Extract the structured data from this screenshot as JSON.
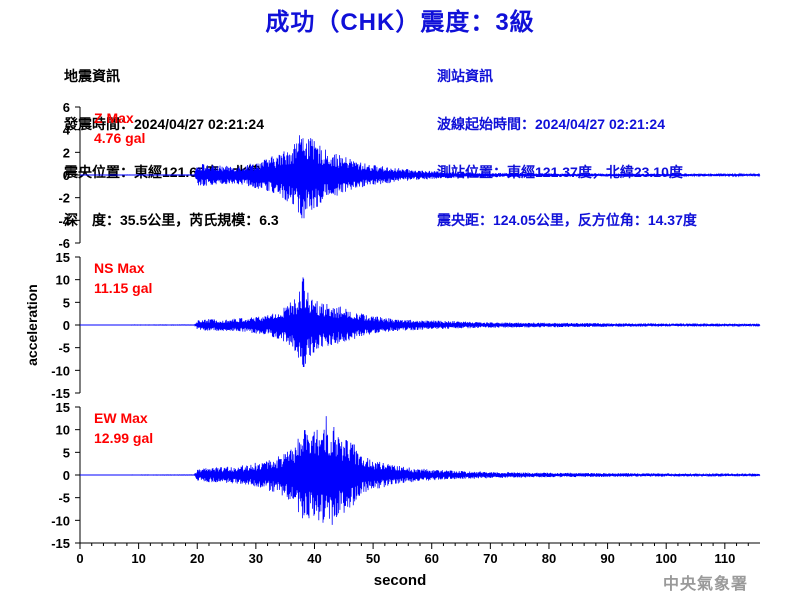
{
  "title": "成功（CHK）震度：3級",
  "quake_info": {
    "heading": "地震資訊",
    "origin_time": "發震時間：2024/04/27 02:21:24",
    "epicenter": "震央位置：東經121.67度，北緯24.18度",
    "depth_magnitude": "深　度：35.5公里，芮氏規模：6.3"
  },
  "station_info": {
    "heading": "測站資訊",
    "wave_start": "波線起始時間：2024/04/27 02:21:24",
    "location": "測站位置：東經121.37度，北緯23.10度",
    "distance": "震央距：124.05公里，反方位角：14.37度"
  },
  "footer": "中央氣象署",
  "colors": {
    "title": "#1010d8",
    "trace": "#0000ff",
    "max_label": "#ff0000",
    "station_text": "#1010d8"
  },
  "chart_data": [
    {
      "type": "line",
      "component": "Z",
      "max_label": "Z Max",
      "max_value": "4.76 gal",
      "ylim": [
        -6,
        6
      ],
      "yticks": [
        6,
        4,
        2,
        0,
        -2,
        -4,
        -6
      ],
      "ylabel": "",
      "xlabel": "",
      "peak": 4.76,
      "envelope": [
        [
          0,
          0.01
        ],
        [
          19.5,
          0.02
        ],
        [
          20,
          1.1
        ],
        [
          22,
          0.9
        ],
        [
          25,
          0.8
        ],
        [
          28,
          0.9
        ],
        [
          31,
          1.3
        ],
        [
          34,
          1.9
        ],
        [
          36,
          2.6
        ],
        [
          37,
          3.3
        ],
        [
          38,
          4.2
        ],
        [
          39,
          3.4
        ],
        [
          40,
          3.0
        ],
        [
          41,
          2.6
        ],
        [
          42,
          2.2
        ],
        [
          44,
          1.8
        ],
        [
          46,
          1.5
        ],
        [
          48,
          1.1
        ],
        [
          50,
          0.9
        ],
        [
          53,
          0.7
        ],
        [
          56,
          0.5
        ],
        [
          60,
          0.35
        ],
        [
          65,
          0.25
        ],
        [
          70,
          0.2
        ],
        [
          80,
          0.15
        ],
        [
          90,
          0.12
        ],
        [
          100,
          0.1
        ],
        [
          116,
          0.08
        ]
      ]
    },
    {
      "type": "line",
      "component": "NS",
      "max_label": "NS Max",
      "max_value": "11.15 gal",
      "ylim": [
        -15,
        15
      ],
      "yticks": [
        15,
        10,
        5,
        0,
        -5,
        -10,
        -15
      ],
      "ylabel": "acceleration",
      "xlabel": "",
      "peak": 11.15,
      "envelope": [
        [
          0,
          0.02
        ],
        [
          19.5,
          0.05
        ],
        [
          20,
          1.0
        ],
        [
          22,
          1.3
        ],
        [
          25,
          1.3
        ],
        [
          28,
          1.6
        ],
        [
          31,
          2.0
        ],
        [
          34,
          3.2
        ],
        [
          36,
          5.2
        ],
        [
          37,
          6.2
        ],
        [
          38,
          11.1
        ],
        [
          39,
          7.2
        ],
        [
          40,
          6.5
        ],
        [
          41,
          5.2
        ],
        [
          42,
          4.8
        ],
        [
          44,
          4.2
        ],
        [
          46,
          3.5
        ],
        [
          48,
          2.6
        ],
        [
          50,
          2.0
        ],
        [
          53,
          1.5
        ],
        [
          56,
          1.2
        ],
        [
          60,
          1.0
        ],
        [
          65,
          0.8
        ],
        [
          70,
          0.6
        ],
        [
          80,
          0.5
        ],
        [
          90,
          0.4
        ],
        [
          100,
          0.35
        ],
        [
          116,
          0.3
        ]
      ]
    },
    {
      "type": "line",
      "component": "EW",
      "max_label": "EW Max",
      "max_value": "12.99 gal",
      "ylim": [
        -15,
        15
      ],
      "yticks": [
        15,
        10,
        5,
        0,
        -5,
        -10,
        -15
      ],
      "ylabel": "",
      "xlabel": "second",
      "xlim": [
        0,
        116
      ],
      "xticks": [
        0,
        10,
        20,
        30,
        40,
        50,
        60,
        70,
        80,
        90,
        100,
        110
      ],
      "peak": 12.99,
      "envelope": [
        [
          0,
          0.02
        ],
        [
          19.5,
          0.05
        ],
        [
          20,
          1.2
        ],
        [
          22,
          1.6
        ],
        [
          25,
          1.8
        ],
        [
          28,
          2.2
        ],
        [
          31,
          3.0
        ],
        [
          34,
          4.2
        ],
        [
          36,
          5.8
        ],
        [
          37,
          7.5
        ],
        [
          38,
          10.5
        ],
        [
          39,
          9.5
        ],
        [
          40,
          10.2
        ],
        [
          41,
          11.0
        ],
        [
          42,
          12.99
        ],
        [
          43,
          11.5
        ],
        [
          44,
          9.0
        ],
        [
          46,
          8.0
        ],
        [
          47,
          6.5
        ],
        [
          48,
          4.5
        ],
        [
          50,
          3.2
        ],
        [
          53,
          2.4
        ],
        [
          56,
          1.7
        ],
        [
          60,
          1.2
        ],
        [
          65,
          0.9
        ],
        [
          70,
          0.7
        ],
        [
          80,
          0.5
        ],
        [
          90,
          0.45
        ],
        [
          100,
          0.35
        ],
        [
          116,
          0.3
        ]
      ]
    }
  ]
}
